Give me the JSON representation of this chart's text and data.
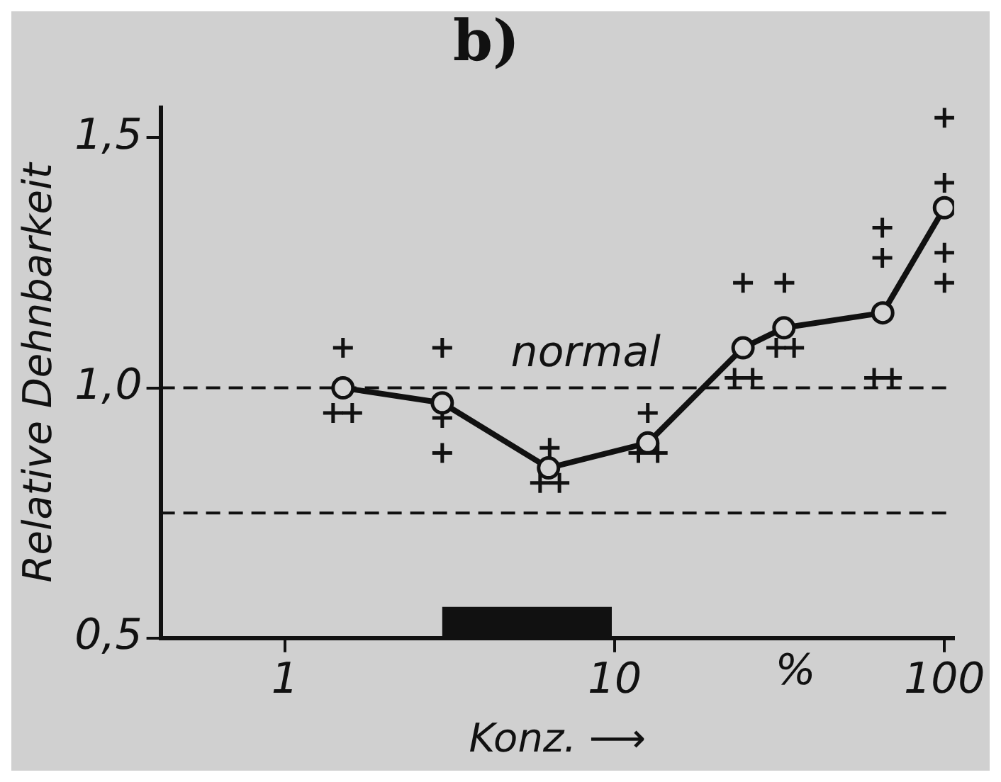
{
  "chart_data": {
    "type": "line",
    "title": "b)",
    "xlabel": "Konz. ⟶",
    "ylabel": "Relative Dehnbarkeit",
    "log": "x",
    "grid": false,
    "legend": false,
    "xlim": [
      0.42,
      107
    ],
    "xticks": [
      {
        "value": 1,
        "label": "1"
      },
      10,
      100
    ],
    "ylim": [
      0.5,
      1.56
    ],
    "yticks": [
      {
        "value": 0.5,
        "label": "0,5"
      },
      {
        "value": 1.0,
        "label": "1,0"
      },
      {
        "value": 1.5,
        "label": "1,5"
      }
    ],
    "ref_lines": [
      {
        "axis": "y",
        "value": 1.0,
        "label": "normal",
        "color": "#111111",
        "line_style": "dashed"
      },
      {
        "axis": "y",
        "value": 0.75,
        "color": "#111111",
        "line_style": "dashed"
      }
    ],
    "bands": [
      {
        "axis": "x",
        "from": 3.0,
        "to": 9.8,
        "color": "#111111"
      }
    ],
    "annotations": [
      "%"
    ],
    "series": [
      {
        "color": "#111111",
        "marker": "circle",
        "line_style": "solid",
        "x": [
          1.5,
          3.0,
          6.3,
          12.6,
          24.5,
          32.6,
          65,
          100
        ],
        "values": [
          1.0,
          0.97,
          0.84,
          0.89,
          1.08,
          1.12,
          1.15,
          1.36
        ]
      },
      {
        "type": "scatter",
        "color": "#111111",
        "marker": "cross",
        "x": [
          1.5,
          1.4,
          1.6,
          3.0,
          3.0,
          3.0,
          6.35,
          5.94,
          6.8,
          12.6,
          11.8,
          13.5,
          24.5,
          23.1,
          26.2,
          32.7,
          30.9,
          35.0,
          64.8,
          64.8,
          61.2,
          69.3,
          100,
          100,
          100,
          100
        ],
        "values": [
          1.08,
          0.95,
          0.95,
          1.08,
          0.94,
          0.87,
          0.88,
          0.81,
          0.81,
          0.95,
          0.87,
          0.87,
          1.21,
          1.02,
          1.02,
          1.21,
          1.08,
          1.08,
          1.32,
          1.26,
          1.02,
          1.02,
          1.54,
          1.41,
          1.27,
          1.21
        ]
      }
    ]
  }
}
